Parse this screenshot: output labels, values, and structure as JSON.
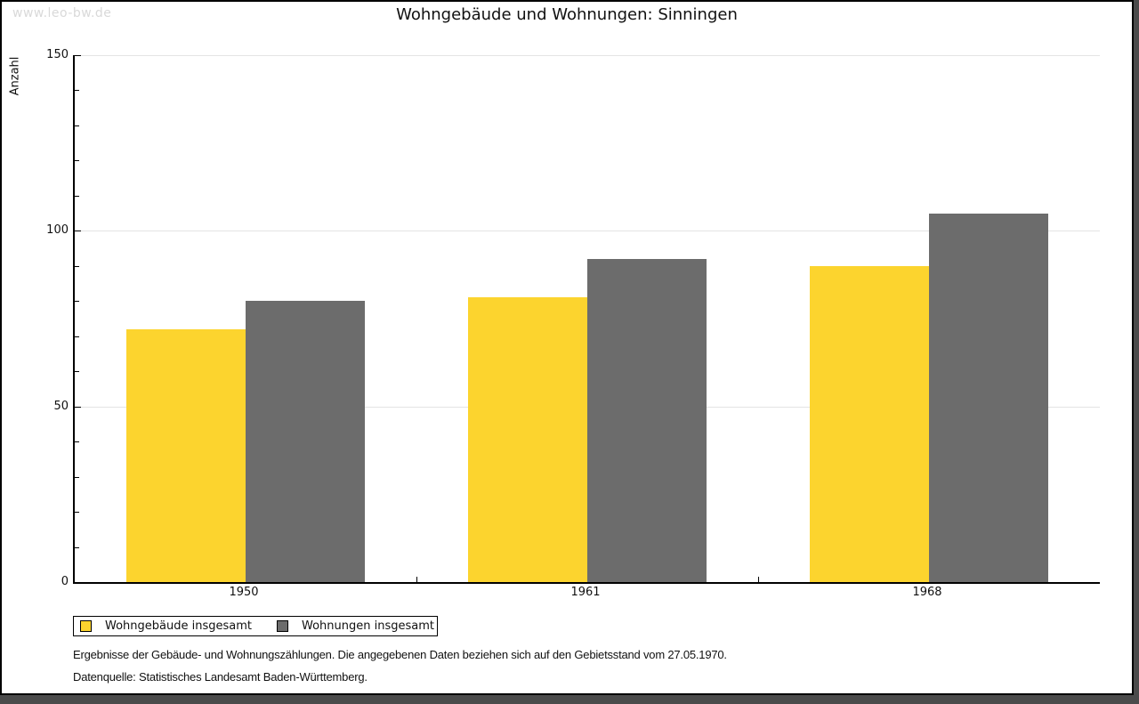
{
  "watermark": "www.leo-bw.de",
  "header": {
    "title": "Wohngebäude und Wohnungen: Sinningen"
  },
  "chart_data": {
    "type": "bar",
    "title": "Wohngebäude und Wohnungen: Sinningen",
    "xlabel": "",
    "ylabel": "Anzahl",
    "ylim": [
      0,
      150
    ],
    "yticks": [
      0,
      50,
      100,
      150
    ],
    "minor_tick_step": 10,
    "grid": "horizontal-at-major-ticks",
    "legend_position": "bottom-left",
    "categories": [
      "1950",
      "1961",
      "1968"
    ],
    "series": [
      {
        "name": "Wohngebäude insgesamt",
        "color": "#fcd42e",
        "values": [
          72,
          81,
          90
        ]
      },
      {
        "name": "Wohnungen insgesamt",
        "color": "#6c6c6c",
        "values": [
          80,
          92,
          105
        ]
      }
    ]
  },
  "footer": {
    "line1": "Ergebnisse der Gebäude- und Wohnungszählungen. Die angegebenen Daten beziehen sich auf den Gebietsstand vom 27.05.1970.",
    "line2": "Datenquelle: Statistisches Landesamt Baden-Württemberg."
  }
}
